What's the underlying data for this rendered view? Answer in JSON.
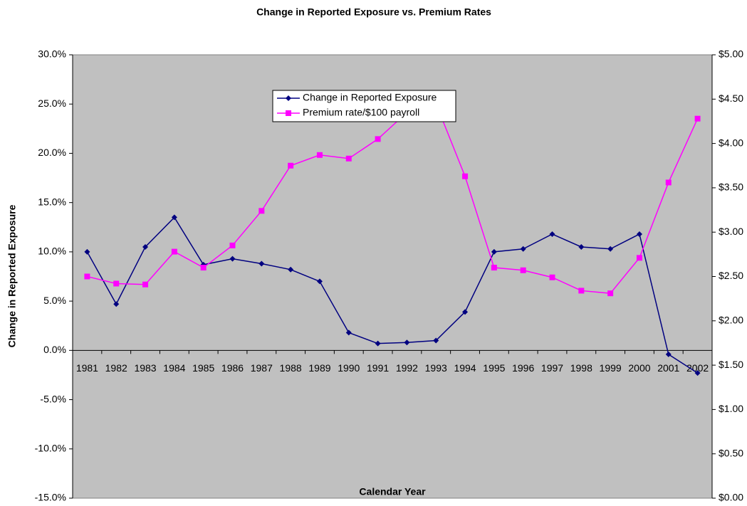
{
  "chart_data": {
    "type": "line",
    "title": "Change in Reported Exposure vs. Premium Rates",
    "x_label": "Calendar Year",
    "y_label": "Change in Reported Exposure",
    "categories": [
      "1981",
      "1982",
      "1983",
      "1984",
      "1985",
      "1986",
      "1987",
      "1988",
      "1989",
      "1990",
      "1991",
      "1992",
      "1993",
      "1994",
      "1995",
      "1996",
      "1997",
      "1998",
      "1999",
      "2000",
      "2001",
      "2002"
    ],
    "series": [
      {
        "name": "Change in Reported Exposure",
        "color": "#000080",
        "marker": "diamond",
        "values": [
          10.0,
          4.7,
          10.5,
          13.5,
          8.7,
          9.3,
          8.8,
          8.2,
          7.0,
          1.8,
          0.7,
          0.8,
          1.0,
          3.9,
          10.0,
          10.3,
          11.8,
          10.5,
          10.3,
          11.8,
          -0.4,
          -2.3
        ]
      },
      {
        "name": "Premium rate/$100 payroll",
        "color": "#ff00ff",
        "marker": "square",
        "axis": "y2",
        "values": [
          2.5,
          2.42,
          2.41,
          2.78,
          2.6,
          2.85,
          3.24,
          3.75,
          3.87,
          3.83,
          4.05,
          4.35,
          4.45,
          3.63,
          2.6,
          2.57,
          2.49,
          2.34,
          2.31,
          2.71,
          3.56,
          4.28
        ]
      }
    ],
    "ylim": [
      -15,
      30
    ],
    "yticks": [
      {
        "value": -15,
        "label": "-15.0%"
      },
      {
        "value": -10,
        "label": "-10.0%"
      },
      {
        "value": -5,
        "label": "-5.0%"
      },
      {
        "value": 0,
        "label": "0.0%"
      },
      {
        "value": 5,
        "label": "5.0%"
      },
      {
        "value": 10,
        "label": "10.0%"
      },
      {
        "value": 15,
        "label": "15.0%"
      },
      {
        "value": 20,
        "label": "20.0%"
      },
      {
        "value": 25,
        "label": "25.0%"
      },
      {
        "value": 30,
        "label": "30.0%"
      }
    ],
    "y2lim": [
      0,
      5
    ],
    "y2ticks": [
      {
        "value": 0,
        "label": "$0.00"
      },
      {
        "value": 0.5,
        "label": "$0.50"
      },
      {
        "value": 1,
        "label": "$1.00"
      },
      {
        "value": 1.5,
        "label": "$1.50"
      },
      {
        "value": 2,
        "label": "$2.00"
      },
      {
        "value": 2.5,
        "label": "$2.50"
      },
      {
        "value": 3,
        "label": "$3.00"
      },
      {
        "value": 3.5,
        "label": "$3.50"
      },
      {
        "value": 4,
        "label": "$4.00"
      },
      {
        "value": 4.5,
        "label": "$4.50"
      },
      {
        "value": 5,
        "label": "$5.00"
      }
    ],
    "plot_background": "#c0c0c0",
    "grid": false
  }
}
